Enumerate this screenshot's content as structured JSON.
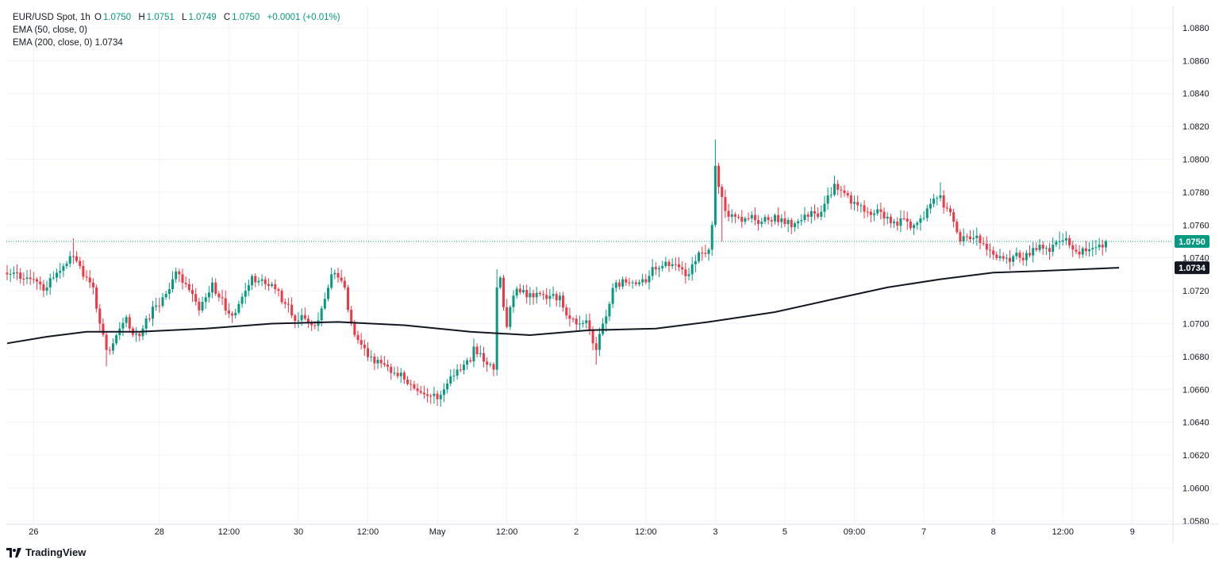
{
  "header": {
    "symbol": "EUR/USD Spot, 1h",
    "open_label": "O",
    "open": "1.0750",
    "high_label": "H",
    "high": "1.0751",
    "low_label": "L",
    "low": "1.0749",
    "close_label": "C",
    "close": "1.0750",
    "change": "+0.0001 (+0.01%)",
    "ema50_label": "EMA (50, close, 0)",
    "ema200_label": "EMA (200, close, 0)",
    "ema200_value": "1.0734"
  },
  "footer": {
    "brand": "TradingView"
  },
  "colors": {
    "up": "#089981",
    "down": "#f23645",
    "ema": "#131722",
    "grid": "#f0f3fa",
    "axis_text": "#131722"
  },
  "chart_data": {
    "type": "candlestick",
    "title": "EUR/USD Spot, 1h",
    "ylim": [
      1.0578,
      1.0893
    ],
    "y_ticks": [
      "1.0880",
      "1.0860",
      "1.0840",
      "1.0820",
      "1.0800",
      "1.0780",
      "1.0760",
      "1.0740",
      "1.0720",
      "1.0700",
      "1.0680",
      "1.0660",
      "1.0640",
      "1.0620",
      "1.0600",
      "1.0580"
    ],
    "x_ticks": [
      {
        "bar": 8,
        "label": "26"
      },
      {
        "bar": 46,
        "label": "28"
      },
      {
        "bar": 67,
        "label": "12:00"
      },
      {
        "bar": 88,
        "label": "30"
      },
      {
        "bar": 109,
        "label": "12:00"
      },
      {
        "bar": 130,
        "label": "May"
      },
      {
        "bar": 151,
        "label": "12:00"
      },
      {
        "bar": 172,
        "label": "2"
      },
      {
        "bar": 193,
        "label": "12:00"
      },
      {
        "bar": 214,
        "label": "3"
      },
      {
        "bar": 235,
        "label": "5"
      },
      {
        "bar": 256,
        "label": "09:00"
      },
      {
        "bar": 277,
        "label": "7"
      },
      {
        "bar": 298,
        "label": "8"
      },
      {
        "bar": 319,
        "label": "12:00"
      },
      {
        "bar": 340,
        "label": "9"
      }
    ],
    "last_price": "1.0750",
    "ema200_last": "1.0734",
    "ema200_ticks": [
      {
        "bar": 0,
        "value": 1.0688
      },
      {
        "bar": 12,
        "value": 1.0692
      },
      {
        "bar": 24,
        "value": 1.0695
      },
      {
        "bar": 40,
        "value": 1.0695
      },
      {
        "bar": 60,
        "value": 1.0697
      },
      {
        "bar": 80,
        "value": 1.07
      },
      {
        "bar": 100,
        "value": 1.0701
      },
      {
        "bar": 120,
        "value": 1.0699
      },
      {
        "bar": 140,
        "value": 1.0695
      },
      {
        "bar": 158,
        "value": 1.0693
      },
      {
        "bar": 176,
        "value": 1.0696
      },
      {
        "bar": 196,
        "value": 1.0697
      },
      {
        "bar": 212,
        "value": 1.0701
      },
      {
        "bar": 232,
        "value": 1.0707
      },
      {
        "bar": 250,
        "value": 1.0715
      },
      {
        "bar": 266,
        "value": 1.0722
      },
      {
        "bar": 282,
        "value": 1.0727
      },
      {
        "bar": 298,
        "value": 1.0731
      },
      {
        "bar": 312,
        "value": 1.0732
      },
      {
        "bar": 336,
        "value": 1.0734
      }
    ],
    "close_path": [
      [
        0,
        1.073
      ],
      [
        3,
        1.0731
      ],
      [
        6,
        1.0728
      ],
      [
        8,
        1.0727
      ],
      [
        10,
        1.0724
      ],
      [
        12,
        1.0722
      ],
      [
        14,
        1.0728
      ],
      [
        17,
        1.0735
      ],
      [
        19,
        1.0741
      ],
      [
        22,
        1.0735
      ],
      [
        24,
        1.0728
      ],
      [
        26,
        1.0722
      ],
      [
        28,
        1.07
      ],
      [
        30,
        1.0684
      ],
      [
        32,
        1.0688
      ],
      [
        34,
        1.0697
      ],
      [
        36,
        1.0704
      ],
      [
        37,
        1.0697
      ],
      [
        39,
        1.0694
      ],
      [
        41,
        1.0697
      ],
      [
        43,
        1.0703
      ],
      [
        45,
        1.0711
      ],
      [
        47,
        1.0716
      ],
      [
        49,
        1.0721
      ],
      [
        50,
        1.0727
      ],
      [
        52,
        1.073
      ],
      [
        54,
        1.0724
      ],
      [
        56,
        1.0718
      ],
      [
        58,
        1.0708
      ],
      [
        60,
        1.0716
      ],
      [
        62,
        1.0725
      ],
      [
        64,
        1.0716
      ],
      [
        66,
        1.0708
      ],
      [
        68,
        1.0705
      ],
      [
        70,
        1.0712
      ],
      [
        72,
        1.072
      ],
      [
        74,
        1.0729
      ],
      [
        76,
        1.0726
      ],
      [
        78,
        1.0724
      ],
      [
        80,
        1.0724
      ],
      [
        82,
        1.072
      ],
      [
        84,
        1.0712
      ],
      [
        86,
        1.0705
      ],
      [
        88,
        1.0702
      ],
      [
        90,
        1.0703
      ],
      [
        92,
        1.0699
      ],
      [
        94,
        1.0702
      ],
      [
        96,
        1.0715
      ],
      [
        98,
        1.073
      ],
      [
        100,
        1.0728
      ],
      [
        102,
        1.0722
      ],
      [
        104,
        1.07
      ],
      [
        106,
        1.069
      ],
      [
        108,
        1.0685
      ],
      [
        110,
        1.068
      ],
      [
        112,
        1.0678
      ],
      [
        114,
        1.0675
      ],
      [
        116,
        1.067
      ],
      [
        118,
        1.0668
      ],
      [
        120,
        1.0666
      ],
      [
        122,
        1.0663
      ],
      [
        124,
        1.0659
      ],
      [
        126,
        1.0657
      ],
      [
        128,
        1.0656
      ],
      [
        130,
        1.0654
      ],
      [
        132,
        1.066
      ],
      [
        134,
        1.0668
      ],
      [
        136,
        1.0672
      ],
      [
        138,
        1.0675
      ],
      [
        140,
        1.0677
      ],
      [
        141,
        1.0686
      ],
      [
        143,
        1.0682
      ],
      [
        145,
        1.0675
      ],
      [
        147,
        1.0672
      ],
      [
        148,
        1.0722
      ],
      [
        149,
        1.0728
      ],
      [
        150,
        1.071
      ],
      [
        151,
        1.0698
      ],
      [
        153,
        1.0717
      ],
      [
        155,
        1.0719
      ],
      [
        157,
        1.0716
      ],
      [
        159,
        1.0716
      ],
      [
        161,
        1.0718
      ],
      [
        163,
        1.0715
      ],
      [
        165,
        1.0718
      ],
      [
        167,
        1.0717
      ],
      [
        169,
        1.0705
      ],
      [
        171,
        1.0703
      ],
      [
        173,
        1.07
      ],
      [
        175,
        1.0702
      ],
      [
        177,
        1.0688
      ],
      [
        178,
        1.0684
      ],
      [
        180,
        1.07
      ],
      [
        182,
        1.0712
      ],
      [
        184,
        1.0725
      ],
      [
        186,
        1.0727
      ],
      [
        188,
        1.0725
      ],
      [
        190,
        1.0724
      ],
      [
        192,
        1.0727
      ],
      [
        194,
        1.0729
      ],
      [
        196,
        1.0733
      ],
      [
        198,
        1.0735
      ],
      [
        200,
        1.0735
      ],
      [
        202,
        1.0736
      ],
      [
        204,
        1.0733
      ],
      [
        206,
        1.073
      ],
      [
        208,
        1.0738
      ],
      [
        210,
        1.0743
      ],
      [
        212,
        1.0745
      ],
      [
        213,
        1.076
      ],
      [
        214,
        1.0796
      ],
      [
        216,
        1.0777
      ],
      [
        218,
        1.0765
      ],
      [
        220,
        1.0765
      ],
      [
        222,
        1.0762
      ],
      [
        224,
        1.0764
      ],
      [
        226,
        1.0763
      ],
      [
        228,
        1.0762
      ],
      [
        230,
        1.0763
      ],
      [
        232,
        1.0766
      ],
      [
        234,
        1.0764
      ],
      [
        236,
        1.0763
      ],
      [
        238,
        1.0761
      ],
      [
        240,
        1.0763
      ],
      [
        242,
        1.0765
      ],
      [
        244,
        1.0767
      ],
      [
        246,
        1.0768
      ],
      [
        248,
        1.0778
      ],
      [
        250,
        1.0785
      ],
      [
        252,
        1.0781
      ],
      [
        254,
        1.0778
      ],
      [
        256,
        1.0774
      ],
      [
        258,
        1.0772
      ],
      [
        260,
        1.0768
      ],
      [
        262,
        1.0767
      ],
      [
        264,
        1.0768
      ],
      [
        266,
        1.0765
      ],
      [
        268,
        1.0762
      ],
      [
        270,
        1.0764
      ],
      [
        272,
        1.0762
      ],
      [
        274,
        1.076
      ],
      [
        276,
        1.0764
      ],
      [
        278,
        1.077
      ],
      [
        280,
        1.0776
      ],
      [
        282,
        1.0778
      ],
      [
        284,
        1.077
      ],
      [
        286,
        1.0762
      ],
      [
        288,
        1.075
      ],
      [
        290,
        1.0753
      ],
      [
        292,
        1.0752
      ],
      [
        294,
        1.0749
      ],
      [
        296,
        1.0745
      ],
      [
        298,
        1.0742
      ],
      [
        300,
        1.0741
      ],
      [
        302,
        1.074
      ],
      [
        304,
        1.0741
      ],
      [
        306,
        1.074
      ],
      [
        308,
        1.0743
      ],
      [
        310,
        1.0746
      ],
      [
        312,
        1.0748
      ],
      [
        314,
        1.0746
      ],
      [
        316,
        1.0748
      ],
      [
        318,
        1.075
      ],
      [
        320,
        1.0752
      ],
      [
        322,
        1.0745
      ],
      [
        324,
        1.0742
      ],
      [
        326,
        1.0744
      ],
      [
        328,
        1.0746
      ],
      [
        330,
        1.0748
      ],
      [
        332,
        1.075
      ]
    ],
    "spikes": [
      {
        "bar": 20,
        "high": 1.0752
      },
      {
        "bar": 30,
        "low": 1.0674
      },
      {
        "bar": 98,
        "high": 1.0734
      },
      {
        "bar": 130,
        "low": 1.065
      },
      {
        "bar": 148,
        "high": 1.0733
      },
      {
        "bar": 178,
        "low": 1.0675
      },
      {
        "bar": 214,
        "high": 1.0812
      },
      {
        "bar": 216,
        "low": 1.075
      },
      {
        "bar": 250,
        "high": 1.079
      },
      {
        "bar": 282,
        "high": 1.0786
      },
      {
        "bar": 318,
        "high": 1.0756
      }
    ]
  }
}
